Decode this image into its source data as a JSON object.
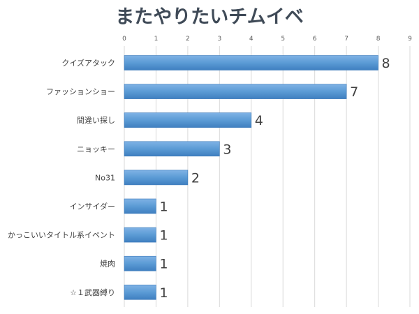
{
  "chart_data": {
    "type": "bar",
    "orientation": "horizontal",
    "title": "またやりたいチムイベ",
    "xlabel": "",
    "ylabel": "",
    "xlim": [
      0,
      9
    ],
    "ticks": [
      "0",
      "1",
      "2",
      "3",
      "4",
      "5",
      "6",
      "7",
      "8",
      "9"
    ],
    "tick_position": "top",
    "grid": true,
    "legend": "none",
    "bar_color": "#5b9bd5",
    "categories": [
      "クイズアタック",
      "ファッションショー",
      "間違い探し",
      "ニョッキー",
      "No31",
      "インサイダー",
      "かっこいいタイトル系イベント",
      "焼肉",
      "☆１武器縛り"
    ],
    "values": [
      8,
      7,
      4,
      3,
      2,
      1,
      1,
      1,
      1
    ],
    "data_labels": [
      "8",
      "7",
      "4",
      "3",
      "2",
      "1",
      "1",
      "1",
      "1"
    ]
  }
}
